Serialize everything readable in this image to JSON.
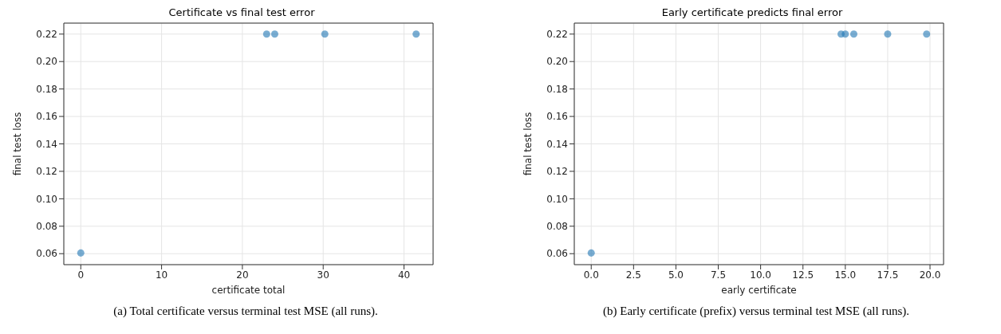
{
  "chart_data": [
    {
      "type": "scatter",
      "title": "Certificate vs final test error",
      "xlabel": "certificate total",
      "ylabel": "final test loss",
      "annotations": [
        "(a) Total certificate versus terminal test MSE (all runs)."
      ],
      "x": [
        0,
        23,
        24,
        30.2,
        41.5
      ],
      "series": [
        {
          "color": "#1f77b4",
          "values": [
            0.0605,
            0.22,
            0.22,
            0.22,
            0.22
          ]
        }
      ],
      "xlim": [
        -2.1,
        43.6
      ],
      "ylim": [
        0.052,
        0.228
      ],
      "xticks": [
        0,
        10,
        20,
        30,
        40
      ],
      "yticks": [
        {
          "value": 0.06,
          "label": "0.06"
        },
        {
          "value": 0.08,
          "label": "0.08"
        },
        {
          "value": 0.1,
          "label": "0.10"
        },
        {
          "value": 0.12,
          "label": "0.12"
        },
        {
          "value": 0.14,
          "label": "0.14"
        },
        {
          "value": 0.16,
          "label": "0.16"
        },
        {
          "value": 0.18,
          "label": "0.18"
        },
        {
          "value": 0.2,
          "label": "0.20"
        },
        {
          "value": 0.22,
          "label": "0.22"
        }
      ],
      "grid": true,
      "marker": "circle"
    },
    {
      "type": "scatter",
      "title": "Early certificate predicts final error",
      "xlabel": "early certificate",
      "ylabel": "final test loss",
      "annotations": [
        "(b) Early certificate (prefix) versus terminal test MSE (all runs)."
      ],
      "x": [
        0,
        14.75,
        15,
        15.5,
        17.5,
        19.8
      ],
      "series": [
        {
          "color": "#1f77b4",
          "values": [
            0.0605,
            0.22,
            0.22,
            0.22,
            0.22,
            0.22
          ]
        }
      ],
      "xlim": [
        -1,
        20.8
      ],
      "ylim": [
        0.052,
        0.228
      ],
      "xticks": [
        {
          "value": 0,
          "label": "0.0"
        },
        {
          "value": 2.5,
          "label": "2.5"
        },
        {
          "value": 5,
          "label": "5.0"
        },
        {
          "value": 7.5,
          "label": "7.5"
        },
        {
          "value": 10,
          "label": "10.0"
        },
        {
          "value": 12.5,
          "label": "12.5"
        },
        {
          "value": 15,
          "label": "15.0"
        },
        {
          "value": 17.5,
          "label": "17.5"
        },
        {
          "value": 20,
          "label": "20.0"
        }
      ],
      "yticks": [
        {
          "value": 0.06,
          "label": "0.06"
        },
        {
          "value": 0.08,
          "label": "0.08"
        },
        {
          "value": 0.1,
          "label": "0.10"
        },
        {
          "value": 0.12,
          "label": "0.12"
        },
        {
          "value": 0.14,
          "label": "0.14"
        },
        {
          "value": 0.16,
          "label": "0.16"
        },
        {
          "value": 0.18,
          "label": "0.18"
        },
        {
          "value": 0.2,
          "label": "0.20"
        },
        {
          "value": 0.22,
          "label": "0.22"
        }
      ],
      "grid": true,
      "marker": "circle"
    }
  ]
}
